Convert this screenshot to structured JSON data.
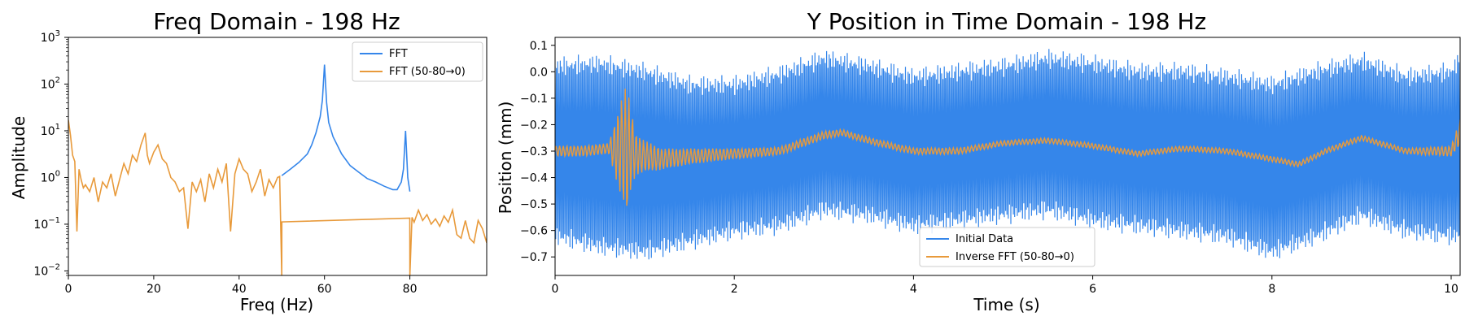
{
  "colors": {
    "fft": "#3586ea",
    "filtered": "#e89a3b",
    "axis": "#000000",
    "legend_border": "#cccccc"
  },
  "chart_data": [
    {
      "type": "line",
      "title": "Freq Domain - 198 Hz",
      "xlabel": "Freq (Hz)",
      "ylabel": "Amplitude",
      "xlim": [
        0,
        98
      ],
      "ylim": [
        0.008,
        1000
      ],
      "yscale": "log",
      "grid": false,
      "legend_position": "top-right",
      "x_ticks": [
        "0",
        "20",
        "40",
        "60",
        "80"
      ],
      "x_tick_values": [
        0,
        20,
        40,
        60,
        80
      ],
      "y_ticks": [
        {
          "base": "10",
          "exp": "−2",
          "value": 0.01
        },
        {
          "base": "10",
          "exp": "−1",
          "value": 0.1
        },
        {
          "base": "10",
          "exp": "0",
          "value": 1
        },
        {
          "base": "10",
          "exp": "1",
          "value": 10
        },
        {
          "base": "10",
          "exp": "2",
          "value": 100
        },
        {
          "base": "10",
          "exp": "3",
          "value": 1000
        }
      ],
      "series": [
        {
          "name": "FFT",
          "color": "#3586ea",
          "x": [
            50,
            52,
            54,
            56,
            57,
            58,
            59,
            59.5,
            60,
            60.5,
            61,
            62,
            64,
            66,
            68,
            70,
            72,
            74,
            76,
            77,
            78,
            78.5,
            79,
            79.5,
            80
          ],
          "y": [
            1.1,
            1.5,
            2.1,
            3.2,
            5,
            9,
            20,
            45,
            260,
            40,
            15,
            7.5,
            3.2,
            1.8,
            1.3,
            0.95,
            0.8,
            0.65,
            0.55,
            0.55,
            0.8,
            1.5,
            10,
            1.0,
            0.5
          ]
        },
        {
          "name": "FFT (50-80→0)",
          "color": "#e89a3b",
          "x": [
            0,
            0.5,
            1,
            1.5,
            2,
            2.5,
            3,
            3.5,
            4,
            5,
            6,
            7,
            8,
            9,
            10,
            11,
            12,
            13,
            14,
            15,
            16,
            17,
            18,
            18.5,
            19,
            20,
            21,
            22,
            23,
            24,
            25,
            26,
            27,
            28,
            29,
            30,
            31,
            32,
            33,
            34,
            35,
            36,
            37,
            38,
            39,
            40,
            41,
            42,
            43,
            44,
            45,
            46,
            47,
            48,
            49,
            49.5,
            50,
            50.01,
            79.99,
            80,
            80.5,
            81,
            82,
            83,
            84,
            85,
            86,
            87,
            88,
            89,
            90,
            91,
            92,
            93,
            94,
            95,
            96,
            97,
            98
          ],
          "y": [
            17,
            8,
            3,
            2.2,
            0.07,
            1.5,
            0.9,
            0.6,
            0.7,
            0.5,
            1.0,
            0.3,
            0.8,
            0.6,
            1.2,
            0.4,
            0.9,
            2.0,
            1.2,
            3.0,
            2.2,
            5.0,
            9.0,
            3.0,
            2.0,
            3.5,
            5.0,
            2.5,
            2.0,
            1.0,
            0.8,
            0.5,
            0.6,
            0.08,
            0.8,
            0.5,
            0.9,
            0.3,
            1.2,
            0.6,
            1.5,
            0.8,
            2.0,
            0.07,
            1.2,
            2.5,
            1.5,
            1.2,
            0.5,
            0.8,
            1.5,
            0.4,
            0.9,
            0.6,
            1.0,
            1.05,
            0.008,
            0.112,
            0.135,
            0.008,
            0.14,
            0.11,
            0.2,
            0.12,
            0.16,
            0.1,
            0.13,
            0.09,
            0.15,
            0.11,
            0.2,
            0.06,
            0.05,
            0.12,
            0.05,
            0.04,
            0.12,
            0.08,
            0.04
          ]
        }
      ]
    },
    {
      "type": "line",
      "title": "Y Position in Time Domain - 198 Hz",
      "xlabel": "Time (s)",
      "ylabel": "Position (mm)",
      "xlim": [
        0,
        10.1
      ],
      "ylim": [
        -0.77,
        0.13
      ],
      "grid": false,
      "legend_position": "lower-center",
      "x_ticks": [
        "0",
        "2",
        "4",
        "6",
        "8",
        "10"
      ],
      "x_tick_values": [
        0,
        2,
        4,
        6,
        8,
        10
      ],
      "y_ticks": [
        "−0.7",
        "−0.6",
        "−0.5",
        "−0.4",
        "−0.3",
        "−0.2",
        "−0.1",
        "0.0",
        "0.1"
      ],
      "y_tick_values": [
        -0.7,
        -0.6,
        -0.5,
        -0.4,
        -0.3,
        -0.2,
        -0.1,
        0.0,
        0.1
      ],
      "series": [
        {
          "name": "Initial Data",
          "color": "#3586ea",
          "band": "upper_lower",
          "t": [
            0,
            0.5,
            1.0,
            1.5,
            2.0,
            2.5,
            3.0,
            3.5,
            4.0,
            4.5,
            5.0,
            5.5,
            6.0,
            6.5,
            7.0,
            7.5,
            8.0,
            8.5,
            9.0,
            9.5,
            10.0,
            10.1
          ],
          "upper": [
            0.02,
            0.03,
            0.0,
            -0.05,
            -0.05,
            -0.01,
            0.05,
            0.02,
            -0.02,
            0.0,
            0.02,
            0.05,
            0.03,
            0.0,
            0.0,
            -0.02,
            -0.05,
            0.0,
            0.04,
            -0.02,
            0.0,
            0.05
          ],
          "lower": [
            -0.62,
            -0.66,
            -0.68,
            -0.64,
            -0.6,
            -0.58,
            -0.52,
            -0.54,
            -0.58,
            -0.56,
            -0.54,
            -0.52,
            -0.56,
            -0.58,
            -0.6,
            -0.62,
            -0.68,
            -0.62,
            -0.54,
            -0.6,
            -0.62,
            -0.62
          ]
        },
        {
          "name": "Inverse FFT (50-80→0)",
          "color": "#e89a3b",
          "t": [
            0,
            0.3,
            0.6,
            0.75,
            0.8,
            0.85,
            0.9,
            1.0,
            1.2,
            1.5,
            2.0,
            2.5,
            3.0,
            3.2,
            3.5,
            4.0,
            4.5,
            5.0,
            5.5,
            6.0,
            6.5,
            7.0,
            7.5,
            8.0,
            8.3,
            8.6,
            9.0,
            9.5,
            10.0,
            10.1
          ],
          "y": [
            -0.3,
            -0.3,
            -0.29,
            -0.29,
            -0.3,
            -0.29,
            -0.31,
            -0.32,
            -0.33,
            -0.32,
            -0.31,
            -0.3,
            -0.24,
            -0.23,
            -0.26,
            -0.3,
            -0.3,
            -0.27,
            -0.26,
            -0.28,
            -0.31,
            -0.29,
            -0.3,
            -0.33,
            -0.35,
            -0.3,
            -0.25,
            -0.3,
            -0.3,
            -0.23
          ],
          "osc_amp": [
            0.02,
            0.02,
            0.02,
            0.2,
            0.25,
            0.15,
            0.08,
            0.06,
            0.04,
            0.03,
            0.02,
            0.015,
            0.015,
            0.012,
            0.012,
            0.012,
            0.012,
            0.01,
            0.01,
            0.01,
            0.01,
            0.01,
            0.01,
            0.01,
            0.01,
            0.01,
            0.01,
            0.01,
            0.02,
            0.05
          ]
        }
      ]
    }
  ]
}
